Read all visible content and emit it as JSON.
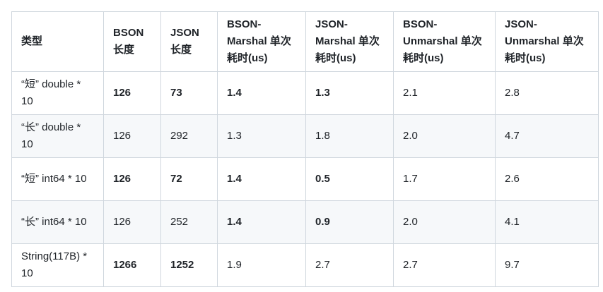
{
  "table": {
    "header": [
      "类型",
      "BSON 长度",
      "JSON 长度",
      "BSON-Marshal 单次耗时(us)",
      "JSON-Marshal 单次耗时(us)",
      "BSON-Unmarshal 单次耗时(us)",
      "JSON-Unmarshal 单次耗时(us)"
    ],
    "rows": [
      [
        "“短” double * 10",
        "126",
        "73",
        "1.4",
        "1.3",
        "2.1",
        "2.8"
      ],
      [
        "“长” double * 10",
        "126",
        "292",
        "1.3",
        "1.8",
        "2.0",
        "4.7"
      ],
      [
        "“短” int64 * 10",
        "126",
        "72",
        "1.4",
        "0.5",
        "1.7",
        "2.6"
      ],
      [
        "“长” int64 * 10",
        "126",
        "252",
        "1.4",
        "0.9",
        "2.0",
        "4.1"
      ],
      [
        "String(117B) * 10",
        "1266",
        "1252",
        "1.9",
        "2.7",
        "2.7",
        "9.7"
      ]
    ],
    "bold": [
      [
        1,
        2,
        3,
        4
      ],
      [],
      [
        1,
        2,
        3,
        4
      ],
      [
        3,
        4
      ],
      [
        1,
        2
      ]
    ]
  }
}
